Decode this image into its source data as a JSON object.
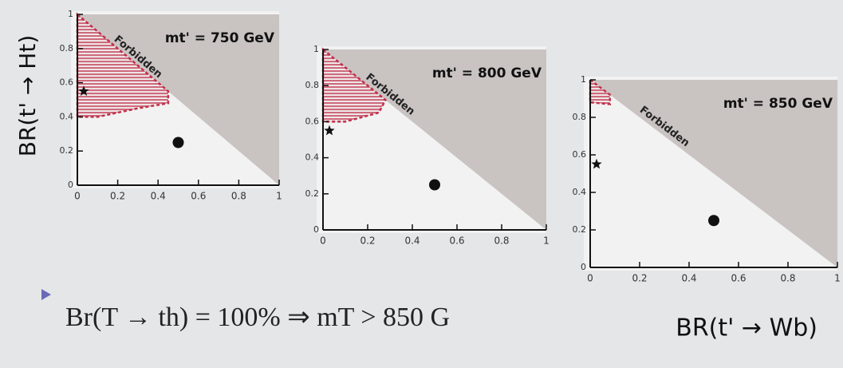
{
  "chart_data": [
    {
      "type": "scatter",
      "title": "mt' = 750 GeV",
      "annotation": "Forbidden",
      "ylabel": "BR(t' → Ht)",
      "xlim": [
        0,
        1
      ],
      "ylim": [
        0,
        1
      ],
      "xticks": [
        0,
        0.2,
        0.4,
        0.6,
        0.8,
        1
      ],
      "yticks": [
        0,
        0.2,
        0.4,
        0.6,
        0.8,
        1
      ],
      "x": [
        0.5,
        0
      ],
      "y": [
        0.25,
        0.55
      ],
      "markers": [
        "circle",
        "star"
      ],
      "region": {
        "x": [
          0,
          0.45,
          0.45,
          0.3,
          0.1,
          0
        ],
        "y": [
          1,
          0.55,
          0.48,
          0.45,
          0.4,
          0.4
        ],
        "color": "#c0304a"
      }
    },
    {
      "type": "scatter",
      "title": "mt' = 800 GeV",
      "annotation": "Forbidden",
      "xlim": [
        0,
        1
      ],
      "ylim": [
        0,
        1
      ],
      "xticks": [
        0,
        0.2,
        0.4,
        0.6,
        0.8,
        1
      ],
      "yticks": [
        0,
        0.2,
        0.4,
        0.6,
        0.8,
        1
      ],
      "x": [
        0.5,
        0
      ],
      "y": [
        0.25,
        0.55
      ],
      "markers": [
        "circle",
        "star"
      ],
      "region": {
        "x": [
          0,
          0.28,
          0.25,
          0.1,
          0
        ],
        "y": [
          1,
          0.72,
          0.65,
          0.6,
          0.6
        ],
        "color": "#c0304a"
      }
    },
    {
      "type": "scatter",
      "title": "mt' = 850 GeV",
      "annotation": "Forbidden",
      "xlabel": "BR(t' → Wb)",
      "xlim": [
        0,
        1
      ],
      "ylim": [
        0,
        1
      ],
      "xticks": [
        0,
        0.2,
        0.4,
        0.6,
        0.8,
        1
      ],
      "yticks": [
        0,
        0.2,
        0.4,
        0.6,
        0.8,
        1
      ],
      "x": [
        0.5,
        0
      ],
      "y": [
        0.25,
        0.55
      ],
      "markers": [
        "circle",
        "star"
      ],
      "region": {
        "x": [
          0,
          0.08,
          0.08,
          0
        ],
        "y": [
          1,
          0.92,
          0.87,
          0.88
        ],
        "color": "#c0304a"
      }
    }
  ],
  "bullet": "Br(T → th) = 100% ⇒ mT > 850 G"
}
